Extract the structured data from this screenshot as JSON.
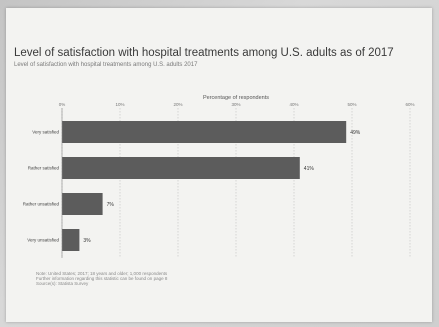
{
  "chart_data": {
    "type": "bar",
    "orientation": "horizontal",
    "title": "Level of satisfaction with hospital treatments among U.S. adults as of 2017",
    "subtitle": "Level of satisfaction with hospital treatments among U.S. adults 2017",
    "xlabel": "Percentage of respondents",
    "xticks": [
      "0%",
      "10%",
      "20%",
      "30%",
      "40%",
      "50%",
      "60%"
    ],
    "xlim": [
      0,
      60
    ],
    "grid": true,
    "categories": [
      "Very satisfied",
      "Rather satisfied",
      "Rather unsatisfied",
      "Very unsatisfied"
    ],
    "values": [
      49,
      41,
      7,
      3
    ],
    "value_labels": [
      "49%",
      "41%",
      "7%",
      "3%"
    ],
    "bar_color": "#5c5c5c"
  },
  "source": {
    "lines": [
      "Note: United States; 2017; 18 years and older; 1,000 respondents",
      "Further information regarding this statistic can be found on page 8",
      "Source(s): Statista Survey"
    ]
  }
}
